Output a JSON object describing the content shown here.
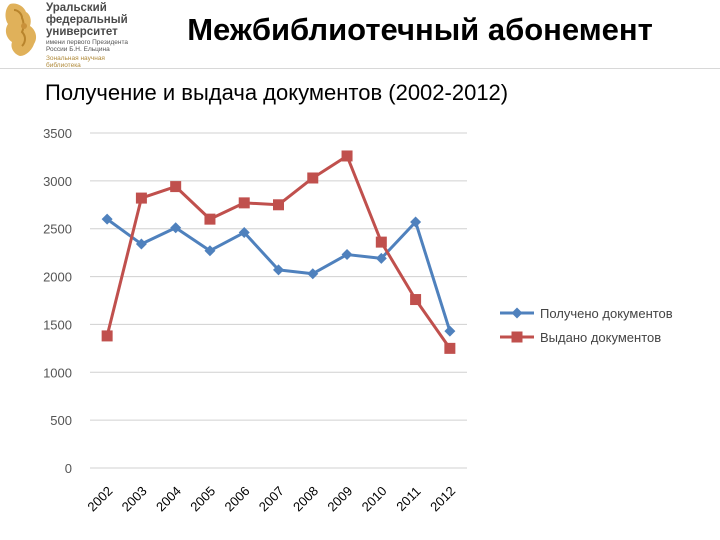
{
  "logo": {
    "lines": [
      "Уральский",
      "федеральный",
      "университет"
    ],
    "sub": "имени первого Президента России Б.Н. Ельцина",
    "library": "Зональная научная библиотека"
  },
  "title": "Межбиблиотечный абонемент",
  "chart_data": {
    "type": "line",
    "title": "Получение и выдача документов (2002-2012)",
    "categories": [
      "2002",
      "2003",
      "2004",
      "2005",
      "2006",
      "2007",
      "2008",
      "2009",
      "2010",
      "2011",
      "2012"
    ],
    "ylim": [
      0,
      3500
    ],
    "yticks": [
      0,
      500,
      1000,
      1500,
      2000,
      2500,
      3000,
      3500
    ],
    "grid": true,
    "legend_position": "right",
    "series": [
      {
        "name": "Получено документов",
        "color": "#4f81bd",
        "marker": "diamond",
        "values": [
          2600,
          2340,
          2510,
          2270,
          2460,
          2070,
          2030,
          2230,
          2190,
          2570,
          1430
        ]
      },
      {
        "name": "Выдано документов",
        "color": "#c0504d",
        "marker": "square",
        "values": [
          1380,
          2820,
          2940,
          2600,
          2770,
          2750,
          3030,
          3260,
          2360,
          1760,
          1250
        ]
      }
    ]
  }
}
